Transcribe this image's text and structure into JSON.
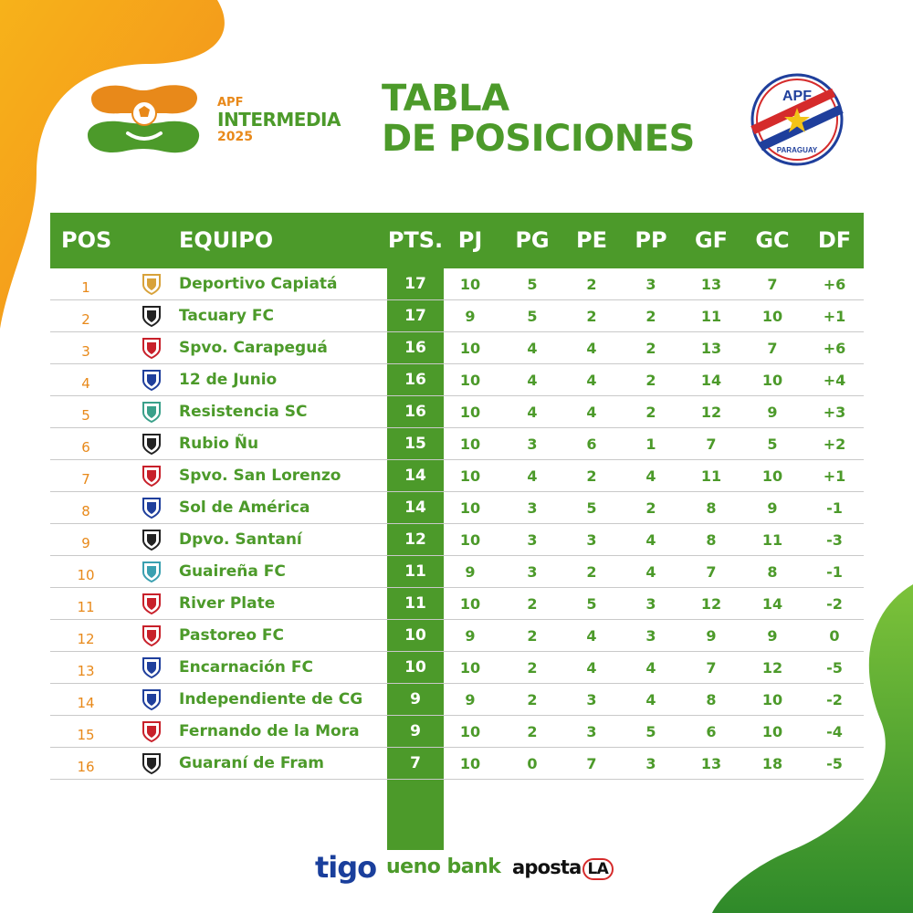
{
  "brand": {
    "apf": "APF",
    "name": "INTERMEDIA",
    "year": "2025"
  },
  "title": {
    "line1": "TABLA",
    "line2": "DE POSICIONES"
  },
  "badge": {
    "top": "APF",
    "bottom": "PARAGUAY"
  },
  "colors": {
    "green": "#4c9a2a",
    "orange": "#e8891a",
    "white": "#ffffff"
  },
  "columns": [
    "POS",
    "EQUIPO",
    "PTS.",
    "PJ",
    "PG",
    "PE",
    "PP",
    "GF",
    "GC",
    "DF"
  ],
  "rows": [
    {
      "pos": "1",
      "team": "Deportivo Capiatá",
      "pts": "17",
      "pj": "10",
      "pg": "5",
      "pe": "2",
      "pp": "3",
      "gf": "13",
      "gc": "7",
      "df": "+6"
    },
    {
      "pos": "2",
      "team": "Tacuary FC",
      "pts": "17",
      "pj": "9",
      "pg": "5",
      "pe": "2",
      "pp": "2",
      "gf": "11",
      "gc": "10",
      "df": "+1"
    },
    {
      "pos": "3",
      "team": "Spvo. Carapeguá",
      "pts": "16",
      "pj": "10",
      "pg": "4",
      "pe": "4",
      "pp": "2",
      "gf": "13",
      "gc": "7",
      "df": "+6"
    },
    {
      "pos": "4",
      "team": "12 de Junio",
      "pts": "16",
      "pj": "10",
      "pg": "4",
      "pe": "4",
      "pp": "2",
      "gf": "14",
      "gc": "10",
      "df": "+4"
    },
    {
      "pos": "5",
      "team": "Resistencia SC",
      "pts": "16",
      "pj": "10",
      "pg": "4",
      "pe": "4",
      "pp": "2",
      "gf": "12",
      "gc": "9",
      "df": "+3"
    },
    {
      "pos": "6",
      "team": "Rubio Ñu",
      "pts": "15",
      "pj": "10",
      "pg": "3",
      "pe": "6",
      "pp": "1",
      "gf": "7",
      "gc": "5",
      "df": "+2"
    },
    {
      "pos": "7",
      "team": "Spvo. San Lorenzo",
      "pts": "14",
      "pj": "10",
      "pg": "4",
      "pe": "2",
      "pp": "4",
      "gf": "11",
      "gc": "10",
      "df": "+1"
    },
    {
      "pos": "8",
      "team": "Sol de América",
      "pts": "14",
      "pj": "10",
      "pg": "3",
      "pe": "5",
      "pp": "2",
      "gf": "8",
      "gc": "9",
      "df": "-1"
    },
    {
      "pos": "9",
      "team": "Dpvo. Santaní",
      "pts": "12",
      "pj": "10",
      "pg": "3",
      "pe": "3",
      "pp": "4",
      "gf": "8",
      "gc": "11",
      "df": "-3"
    },
    {
      "pos": "10",
      "team": "Guaireña FC",
      "pts": "11",
      "pj": "9",
      "pg": "3",
      "pe": "2",
      "pp": "4",
      "gf": "7",
      "gc": "8",
      "df": "-1"
    },
    {
      "pos": "11",
      "team": "River Plate",
      "pts": "11",
      "pj": "10",
      "pg": "2",
      "pe": "5",
      "pp": "3",
      "gf": "12",
      "gc": "14",
      "df": "-2"
    },
    {
      "pos": "12",
      "team": "Pastoreo FC",
      "pts": "10",
      "pj": "9",
      "pg": "2",
      "pe": "4",
      "pp": "3",
      "gf": "9",
      "gc": "9",
      "df": "0"
    },
    {
      "pos": "13",
      "team": "Encarnación FC",
      "pts": "10",
      "pj": "10",
      "pg": "2",
      "pe": "4",
      "pp": "4",
      "gf": "7",
      "gc": "12",
      "df": "-5"
    },
    {
      "pos": "14",
      "team": "Independiente de CG",
      "pts": "9",
      "pj": "9",
      "pg": "2",
      "pe": "3",
      "pp": "4",
      "gf": "8",
      "gc": "10",
      "df": "-2"
    },
    {
      "pos": "15",
      "team": "Fernando de la Mora",
      "pts": "9",
      "pj": "10",
      "pg": "2",
      "pe": "3",
      "pp": "5",
      "gf": "6",
      "gc": "10",
      "df": "-4"
    },
    {
      "pos": "16",
      "team": "Guaraní de Fram",
      "pts": "7",
      "pj": "10",
      "pg": "0",
      "pe": "7",
      "pp": "3",
      "gf": "13",
      "gc": "18",
      "df": "-5"
    }
  ],
  "team_crest_icons": [
    "capiata-crest-icon",
    "tacuary-crest-icon",
    "carapegua-crest-icon",
    "doce-de-junio-crest-icon",
    "resistencia-crest-icon",
    "rubio-nu-crest-icon",
    "san-lorenzo-crest-icon",
    "sol-de-america-crest-icon",
    "santani-crest-icon",
    "guairena-crest-icon",
    "river-plate-crest-icon",
    "pastoreo-crest-icon",
    "encarnacion-crest-icon",
    "independiente-cg-crest-icon",
    "fernando-de-la-mora-crest-icon",
    "guarani-fram-crest-icon"
  ],
  "sponsors": {
    "tigo": "tigo",
    "ueno": "ueno bank",
    "aposta": "aposta",
    "aposta_badge": "LA"
  }
}
